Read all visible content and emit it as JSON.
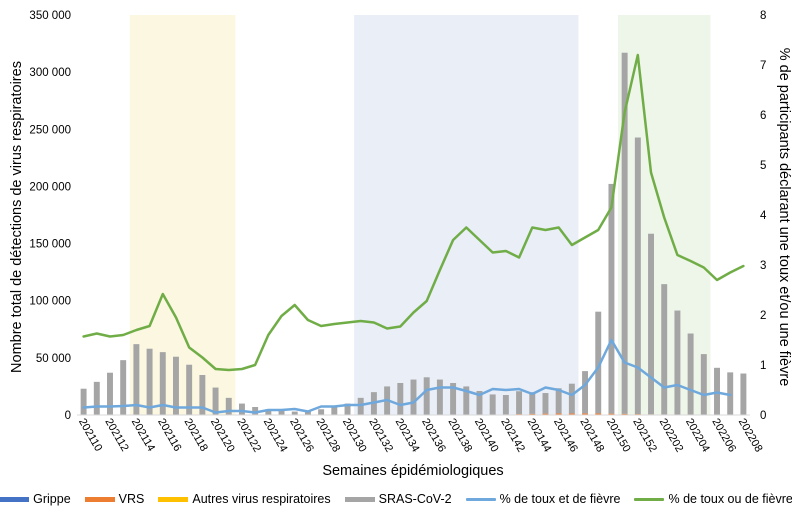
{
  "chart_data": {
    "type": "bar",
    "xlabel": "Semaines épidémiologiques",
    "ylabel": "Nombre total de détections de virus respiratoires",
    "y2label": "% de participants déclarant une toux et/ou une fièvre",
    "ylim": [
      0,
      350000
    ],
    "y2lim": [
      0,
      8
    ],
    "yticks": [
      "0",
      "50 000",
      "100 000",
      "150 000",
      "200 000",
      "250 000",
      "300 000",
      "350 000"
    ],
    "y2ticks": [
      "0",
      "1",
      "2",
      "3",
      "4",
      "5",
      "6",
      "7",
      "8"
    ],
    "weeks": [
      "202110",
      "202111",
      "202112",
      "202113",
      "202114",
      "202115",
      "202116",
      "202117",
      "202118",
      "202119",
      "202120",
      "202121",
      "202122",
      "202123",
      "202124",
      "202125",
      "202126",
      "202127",
      "202128",
      "202129",
      "202130",
      "202131",
      "202132",
      "202133",
      "202134",
      "202135",
      "202136",
      "202137",
      "202138",
      "202139",
      "202140",
      "202141",
      "202142",
      "202143",
      "202144",
      "202145",
      "202146",
      "202147",
      "202148",
      "202149",
      "202150",
      "202151",
      "202152",
      "202201",
      "202202",
      "202203",
      "202204",
      "202205",
      "202206",
      "202207",
      "202208"
    ],
    "tick_labels": [
      "202110",
      "202112",
      "202114",
      "202116",
      "202118",
      "202120",
      "202122",
      "202124",
      "202126",
      "202128",
      "202130",
      "202132",
      "202134",
      "202136",
      "202138",
      "202140",
      "202142",
      "202144",
      "202146",
      "202148",
      "202150",
      "202152",
      "202202",
      "202204",
      "202206",
      "202208"
    ],
    "shaded_periods": [
      {
        "start": "202114",
        "end": "202121",
        "color": "#fbf7e1"
      },
      {
        "start": "202131",
        "end": "202147",
        "color": "#e9eef7"
      },
      {
        "start": "202151",
        "end": "202205",
        "color": "#eef5e9"
      }
    ],
    "series": [
      {
        "name": "Grippe",
        "kind": "bar",
        "color": "#4472c4",
        "values": [
          0,
          0,
          0,
          0,
          0,
          0,
          0,
          0,
          0,
          0,
          0,
          0,
          0,
          0,
          0,
          0,
          0,
          0,
          0,
          0,
          0,
          0,
          0,
          0,
          0,
          0,
          0,
          0,
          0,
          0,
          0,
          0,
          0,
          0,
          0,
          0,
          0,
          0,
          0,
          0,
          0,
          0,
          0,
          0,
          0,
          0,
          0,
          0,
          0,
          0,
          0
        ]
      },
      {
        "name": "VRS",
        "kind": "bar",
        "color": "#ed7d31",
        "values": [
          0,
          0,
          0,
          0,
          0,
          0,
          0,
          0,
          0,
          0,
          0,
          0,
          0,
          0,
          0,
          0,
          0,
          0,
          0,
          0,
          0,
          0,
          0,
          0,
          0,
          0,
          0,
          0,
          0,
          0,
          0,
          0,
          500,
          800,
          1000,
          1200,
          1400,
          1400,
          1400,
          1400,
          1200,
          1000,
          800,
          600,
          500,
          400,
          300,
          300,
          300,
          300,
          300
        ]
      },
      {
        "name": "Autres virus respiratoires",
        "kind": "bar",
        "color": "#ffc000",
        "values": [
          0,
          0,
          0,
          0,
          0,
          0,
          0,
          0,
          0,
          0,
          0,
          0,
          0,
          0,
          0,
          0,
          0,
          0,
          0,
          0,
          0,
          0,
          0,
          0,
          0,
          0,
          0,
          0,
          0,
          0,
          0,
          0,
          0,
          0,
          0,
          0,
          0,
          0,
          0,
          0,
          0,
          0,
          0,
          0,
          0,
          0,
          0,
          0,
          0,
          0,
          0
        ]
      },
      {
        "name": "SRAS-CoV-2",
        "kind": "bar",
        "color": "#a5a5a5",
        "values": [
          23000,
          29000,
          37000,
          48000,
          62000,
          58000,
          55000,
          51000,
          44000,
          35000,
          24000,
          15000,
          10000,
          7000,
          5000,
          4000,
          3000,
          3500,
          5000,
          7000,
          10000,
          15000,
          20000,
          25000,
          28000,
          31000,
          33000,
          31000,
          28000,
          25000,
          21000,
          18000,
          17000,
          20000,
          19000,
          18000,
          22000,
          26000,
          37000,
          89000,
          201000,
          316000,
          242000,
          158000,
          114000,
          91000,
          71000,
          53000,
          41000,
          37000,
          36000
        ]
      },
      {
        "name": "% de toux et de fièvre",
        "kind": "line",
        "color": "#6fa8dc",
        "values": [
          0.15,
          0.17,
          0.17,
          0.18,
          0.2,
          0.15,
          0.2,
          0.15,
          0.15,
          0.15,
          0.05,
          0.08,
          0.08,
          0.05,
          0.1,
          0.1,
          0.12,
          0.07,
          0.17,
          0.17,
          0.2,
          0.2,
          0.25,
          0.3,
          0.2,
          0.25,
          0.5,
          0.55,
          0.55,
          0.48,
          0.4,
          0.52,
          0.5,
          0.52,
          0.42,
          0.55,
          0.5,
          0.4,
          0.6,
          0.95,
          1.5,
          1.05,
          0.95,
          0.75,
          0.55,
          0.6,
          0.5,
          0.4,
          0.45,
          0.4,
          null
        ]
      },
      {
        "name": "% de toux ou de fièvre",
        "kind": "line",
        "color": "#70ad47",
        "values": [
          1.57,
          1.63,
          1.57,
          1.6,
          1.7,
          1.78,
          2.42,
          1.95,
          1.35,
          1.15,
          0.92,
          0.9,
          0.92,
          1.0,
          1.6,
          1.98,
          2.2,
          1.9,
          1.78,
          1.82,
          1.85,
          1.88,
          1.85,
          1.73,
          1.77,
          2.05,
          2.28,
          2.9,
          3.5,
          3.75,
          3.5,
          3.25,
          3.28,
          3.15,
          3.75,
          3.7,
          3.75,
          3.4,
          3.55,
          3.7,
          4.15,
          6.05,
          7.2,
          4.85,
          3.95,
          3.2,
          3.08,
          2.95,
          2.7,
          2.85,
          2.98
        ]
      }
    ]
  },
  "legend": {
    "grippe": "Grippe",
    "vrs": "VRS",
    "autres": "Autres virus respiratoires",
    "sras": "SRAS-CoV-2",
    "toux_et": "% de toux et de fièvre",
    "toux_ou": "% de toux ou de fièvre"
  },
  "colors": {
    "grippe": "#4472c4",
    "vrs": "#ed7d31",
    "autres": "#ffc000",
    "sras": "#a5a5a5",
    "toux_et": "#6fa8dc",
    "toux_ou": "#70ad47"
  }
}
